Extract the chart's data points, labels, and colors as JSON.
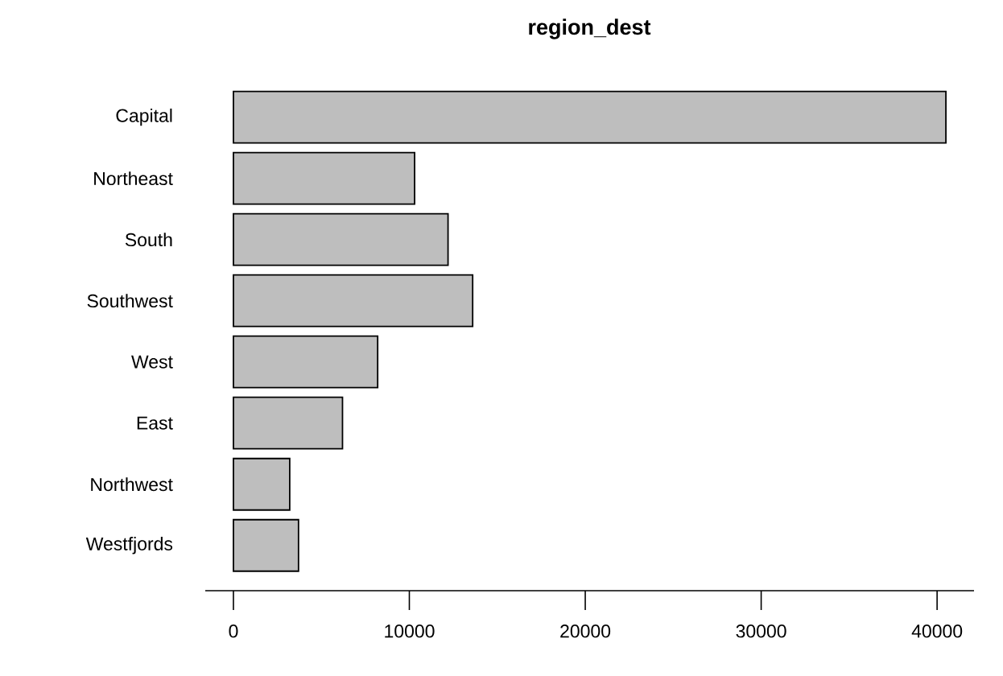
{
  "chart_data": {
    "type": "bar",
    "orientation": "horizontal",
    "title": "region_dest",
    "categories": [
      "Capital",
      "Northeast",
      "South",
      "Southwest",
      "West",
      "East",
      "Northwest",
      "Westfjords"
    ],
    "values": [
      40500,
      10300,
      12200,
      13600,
      8200,
      6200,
      3200,
      3700
    ],
    "color": "#bebebe",
    "xlim": [
      -1600,
      42100
    ],
    "xticks": [
      0,
      10000,
      20000,
      30000,
      40000
    ],
    "grid": false
  }
}
